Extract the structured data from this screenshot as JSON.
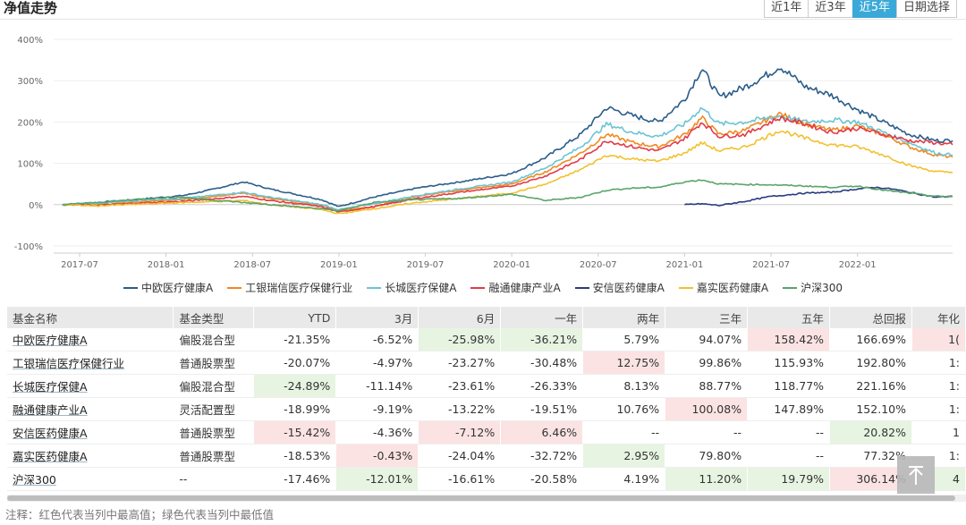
{
  "header": {
    "title": "净值走势",
    "range_buttons": [
      "近1年",
      "近3年",
      "近5年",
      "日期选择"
    ],
    "active_range": "近5年"
  },
  "chart_data": {
    "type": "line",
    "title": "净值走势",
    "x_ticks": [
      "2017-07",
      "2018-01",
      "2018-07",
      "2019-01",
      "2019-07",
      "2020-01",
      "2020-07",
      "2021-01",
      "2021-07",
      "2022-01"
    ],
    "y_ticks": [
      "400%",
      "300%",
      "200%",
      "100%",
      "0%",
      "-100%"
    ],
    "ylim": [
      -100,
      400
    ],
    "xlim": [
      2017.35,
      2022.55
    ],
    "series": [
      {
        "name": "中欧医疗健康A",
        "color": "#2b5c8a",
        "start": 2017.4,
        "keys": [
          [
            2017.4,
            0
          ],
          [
            2017.6,
            5
          ],
          [
            2017.9,
            15
          ],
          [
            2018.1,
            22
          ],
          [
            2018.25,
            35
          ],
          [
            2018.45,
            55
          ],
          [
            2018.6,
            38
          ],
          [
            2018.9,
            12
          ],
          [
            2019.0,
            -5
          ],
          [
            2019.2,
            18
          ],
          [
            2019.45,
            40
          ],
          [
            2019.7,
            55
          ],
          [
            2020.0,
            75
          ],
          [
            2020.2,
            115
          ],
          [
            2020.4,
            170
          ],
          [
            2020.55,
            235
          ],
          [
            2020.7,
            215
          ],
          [
            2020.85,
            200
          ],
          [
            2021.0,
            255
          ],
          [
            2021.1,
            330
          ],
          [
            2021.2,
            260
          ],
          [
            2021.35,
            285
          ],
          [
            2021.5,
            320
          ],
          [
            2021.55,
            335
          ],
          [
            2021.7,
            285
          ],
          [
            2021.85,
            265
          ],
          [
            2022.0,
            230
          ],
          [
            2022.15,
            200
          ],
          [
            2022.3,
            170
          ],
          [
            2022.45,
            155
          ],
          [
            2022.55,
            155
          ]
        ]
      },
      {
        "name": "工银瑞信医疗保健行业",
        "color": "#f08a1c",
        "start": 2017.4,
        "keys": [
          [
            2017.4,
            0
          ],
          [
            2017.6,
            0
          ],
          [
            2017.9,
            8
          ],
          [
            2018.1,
            12
          ],
          [
            2018.45,
            28
          ],
          [
            2018.6,
            15
          ],
          [
            2018.9,
            -2
          ],
          [
            2019.0,
            -15
          ],
          [
            2019.2,
            -5
          ],
          [
            2019.45,
            20
          ],
          [
            2019.7,
            35
          ],
          [
            2020.0,
            50
          ],
          [
            2020.2,
            80
          ],
          [
            2020.4,
            125
          ],
          [
            2020.55,
            170
          ],
          [
            2020.7,
            150
          ],
          [
            2020.85,
            140
          ],
          [
            2021.0,
            170
          ],
          [
            2021.1,
            210
          ],
          [
            2021.2,
            170
          ],
          [
            2021.35,
            180
          ],
          [
            2021.55,
            220
          ],
          [
            2021.7,
            195
          ],
          [
            2021.85,
            180
          ],
          [
            2022.0,
            190
          ],
          [
            2022.15,
            170
          ],
          [
            2022.3,
            140
          ],
          [
            2022.45,
            120
          ],
          [
            2022.55,
            115
          ]
        ]
      },
      {
        "name": "长城医疗保健A",
        "color": "#6cc4d6",
        "start": 2017.4,
        "keys": [
          [
            2017.4,
            0
          ],
          [
            2017.6,
            3
          ],
          [
            2017.9,
            12
          ],
          [
            2018.1,
            15
          ],
          [
            2018.45,
            30
          ],
          [
            2018.6,
            18
          ],
          [
            2018.9,
            0
          ],
          [
            2019.0,
            -12
          ],
          [
            2019.2,
            2
          ],
          [
            2019.45,
            22
          ],
          [
            2019.7,
            38
          ],
          [
            2020.0,
            55
          ],
          [
            2020.2,
            90
          ],
          [
            2020.4,
            140
          ],
          [
            2020.55,
            195
          ],
          [
            2020.7,
            175
          ],
          [
            2020.85,
            165
          ],
          [
            2021.0,
            195
          ],
          [
            2021.1,
            235
          ],
          [
            2021.2,
            195
          ],
          [
            2021.35,
            200
          ],
          [
            2021.55,
            215
          ],
          [
            2021.7,
            200
          ],
          [
            2021.85,
            205
          ],
          [
            2022.0,
            200
          ],
          [
            2022.15,
            175
          ],
          [
            2022.3,
            150
          ],
          [
            2022.45,
            125
          ],
          [
            2022.55,
            120
          ]
        ]
      },
      {
        "name": "融通健康产业A",
        "color": "#e23a48",
        "start": 2017.4,
        "keys": [
          [
            2017.4,
            0
          ],
          [
            2017.6,
            -2
          ],
          [
            2017.9,
            5
          ],
          [
            2018.1,
            8
          ],
          [
            2018.45,
            20
          ],
          [
            2018.6,
            10
          ],
          [
            2018.9,
            -5
          ],
          [
            2019.0,
            -18
          ],
          [
            2019.2,
            -5
          ],
          [
            2019.45,
            15
          ],
          [
            2019.7,
            30
          ],
          [
            2020.0,
            45
          ],
          [
            2020.2,
            70
          ],
          [
            2020.4,
            110
          ],
          [
            2020.55,
            155
          ],
          [
            2020.7,
            140
          ],
          [
            2020.85,
            130
          ],
          [
            2021.0,
            160
          ],
          [
            2021.1,
            200
          ],
          [
            2021.2,
            165
          ],
          [
            2021.35,
            170
          ],
          [
            2021.55,
            210
          ],
          [
            2021.7,
            195
          ],
          [
            2021.85,
            175
          ],
          [
            2022.0,
            185
          ],
          [
            2022.15,
            170
          ],
          [
            2022.3,
            155
          ],
          [
            2022.45,
            150
          ],
          [
            2022.55,
            145
          ]
        ]
      },
      {
        "name": "安信医药健康A",
        "color": "#2a3c80",
        "start": 2021.0,
        "keys": [
          [
            2021.0,
            0
          ],
          [
            2021.1,
            2
          ],
          [
            2021.2,
            -2
          ],
          [
            2021.35,
            8
          ],
          [
            2021.5,
            20
          ],
          [
            2021.7,
            28
          ],
          [
            2021.85,
            30
          ],
          [
            2022.0,
            38
          ],
          [
            2022.1,
            42
          ],
          [
            2022.2,
            38
          ],
          [
            2022.3,
            30
          ],
          [
            2022.45,
            18
          ],
          [
            2022.55,
            20
          ]
        ]
      },
      {
        "name": "嘉实医药健康A",
        "color": "#f2c12e",
        "start": 2017.4,
        "keys": [
          [
            2017.4,
            0
          ],
          [
            2017.6,
            -3
          ],
          [
            2017.9,
            2
          ],
          [
            2018.1,
            5
          ],
          [
            2018.45,
            10
          ],
          [
            2018.6,
            0
          ],
          [
            2018.9,
            -12
          ],
          [
            2019.0,
            -22
          ],
          [
            2019.2,
            -10
          ],
          [
            2019.45,
            5
          ],
          [
            2019.7,
            15
          ],
          [
            2020.0,
            28
          ],
          [
            2020.2,
            50
          ],
          [
            2020.4,
            85
          ],
          [
            2020.55,
            120
          ],
          [
            2020.7,
            110
          ],
          [
            2020.85,
            105
          ],
          [
            2021.0,
            125
          ],
          [
            2021.1,
            150
          ],
          [
            2021.2,
            130
          ],
          [
            2021.35,
            140
          ],
          [
            2021.55,
            180
          ],
          [
            2021.7,
            160
          ],
          [
            2021.85,
            145
          ],
          [
            2022.0,
            140
          ],
          [
            2022.15,
            120
          ],
          [
            2022.3,
            95
          ],
          [
            2022.45,
            80
          ],
          [
            2022.55,
            78
          ]
        ]
      },
      {
        "name": "沪深300",
        "color": "#5aa469",
        "start": 2017.4,
        "keys": [
          [
            2017.4,
            0
          ],
          [
            2017.6,
            5
          ],
          [
            2017.9,
            15
          ],
          [
            2018.1,
            18
          ],
          [
            2018.3,
            10
          ],
          [
            2018.6,
            0
          ],
          [
            2018.9,
            -10
          ],
          [
            2019.0,
            -15
          ],
          [
            2019.2,
            5
          ],
          [
            2019.45,
            12
          ],
          [
            2019.7,
            15
          ],
          [
            2020.0,
            25
          ],
          [
            2020.2,
            10
          ],
          [
            2020.4,
            18
          ],
          [
            2020.55,
            35
          ],
          [
            2020.7,
            40
          ],
          [
            2020.85,
            42
          ],
          [
            2021.0,
            55
          ],
          [
            2021.1,
            60
          ],
          [
            2021.2,
            50
          ],
          [
            2021.5,
            48
          ],
          [
            2021.7,
            45
          ],
          [
            2021.85,
            42
          ],
          [
            2022.0,
            45
          ],
          [
            2022.15,
            35
          ],
          [
            2022.3,
            28
          ],
          [
            2022.45,
            20
          ],
          [
            2022.55,
            20
          ]
        ]
      }
    ]
  },
  "table": {
    "headers": [
      "基金名称",
      "基金类型",
      "YTD",
      "3月",
      "6月",
      "一年",
      "两年",
      "三年",
      "五年",
      "总回报",
      "年化"
    ],
    "rows": [
      {
        "cells": [
          "中欧医疗健康A",
          "偏股混合型",
          "-21.35%",
          "-6.52%",
          "-25.98%",
          "-36.21%",
          "5.79%",
          "94.07%",
          "158.42%",
          "166.69%",
          "1("
        ],
        "hl": [
          "",
          "",
          "",
          "",
          "green",
          "green",
          "",
          "",
          "red",
          "",
          "red"
        ]
      },
      {
        "cells": [
          "工银瑞信医疗保健行业",
          "普通股票型",
          "-20.07%",
          "-4.97%",
          "-23.27%",
          "-30.48%",
          "12.75%",
          "99.86%",
          "115.93%",
          "192.80%",
          "1:"
        ],
        "hl": [
          "",
          "",
          "",
          "",
          "",
          "",
          "red",
          "",
          "",
          "",
          ""
        ]
      },
      {
        "cells": [
          "长城医疗保健A",
          "偏股混合型",
          "-24.89%",
          "-11.14%",
          "-23.61%",
          "-26.33%",
          "8.13%",
          "88.77%",
          "118.77%",
          "221.16%",
          "1:"
        ],
        "hl": [
          "",
          "",
          "green",
          "",
          "",
          "",
          "",
          "",
          "",
          "",
          ""
        ]
      },
      {
        "cells": [
          "融通健康产业A",
          "灵活配置型",
          "-18.99%",
          "-9.19%",
          "-13.22%",
          "-19.51%",
          "10.76%",
          "100.08%",
          "147.89%",
          "152.10%",
          "1:"
        ],
        "hl": [
          "",
          "",
          "",
          "",
          "",
          "",
          "",
          "red",
          "",
          "",
          ""
        ]
      },
      {
        "cells": [
          "安信医药健康A",
          "普通股票型",
          "-15.42%",
          "-4.36%",
          "-7.12%",
          "6.46%",
          "--",
          "--",
          "--",
          "20.82%",
          "1"
        ],
        "hl": [
          "",
          "",
          "red",
          "",
          "red",
          "red",
          "",
          "",
          "",
          "green",
          ""
        ]
      },
      {
        "cells": [
          "嘉实医药健康A",
          "普通股票型",
          "-18.53%",
          "-0.43%",
          "-24.04%",
          "-32.72%",
          "2.95%",
          "79.80%",
          "--",
          "77.32%",
          "1:"
        ],
        "hl": [
          "",
          "",
          "",
          "red",
          "",
          "",
          "green",
          "",
          "",
          "",
          ""
        ]
      },
      {
        "cells": [
          "沪深300",
          "--",
          "-17.46%",
          "-12.01%",
          "-16.61%",
          "-20.58%",
          "4.19%",
          "11.20%",
          "19.79%",
          "306.14%",
          "4"
        ],
        "hl": [
          "",
          "",
          "",
          "green",
          "",
          "",
          "",
          "green",
          "green",
          "red",
          "green"
        ]
      }
    ]
  },
  "note": "注释：红色代表当列中最高值；绿色代表当列中最低值"
}
